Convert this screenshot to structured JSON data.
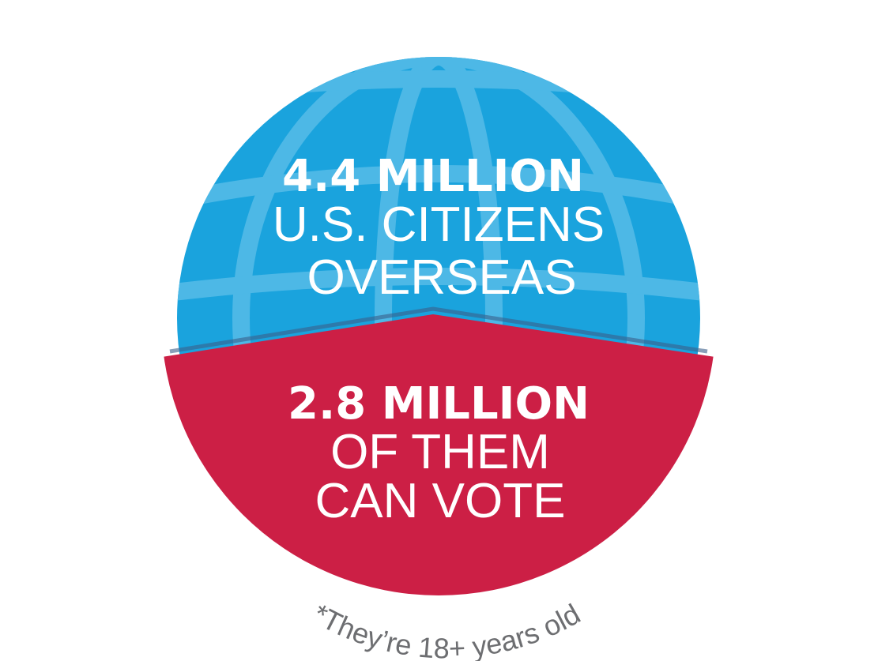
{
  "top": {
    "headline": "4.4 MILLION",
    "line1": "U.S. CITIZENS",
    "line2": "OVERSEAS"
  },
  "bottom": {
    "headline": "2.8 MILLION",
    "line1": "OF THEM",
    "line2": "CAN VOTE"
  },
  "footnote": "*They’re 18+ years old",
  "colors": {
    "globe_blue": "#1aa3dd",
    "globe_lines": "#4db8e6",
    "vote_red": "#cc1f45",
    "footnote_gray": "#6d6e71"
  },
  "icons": [
    "globe-icon"
  ]
}
